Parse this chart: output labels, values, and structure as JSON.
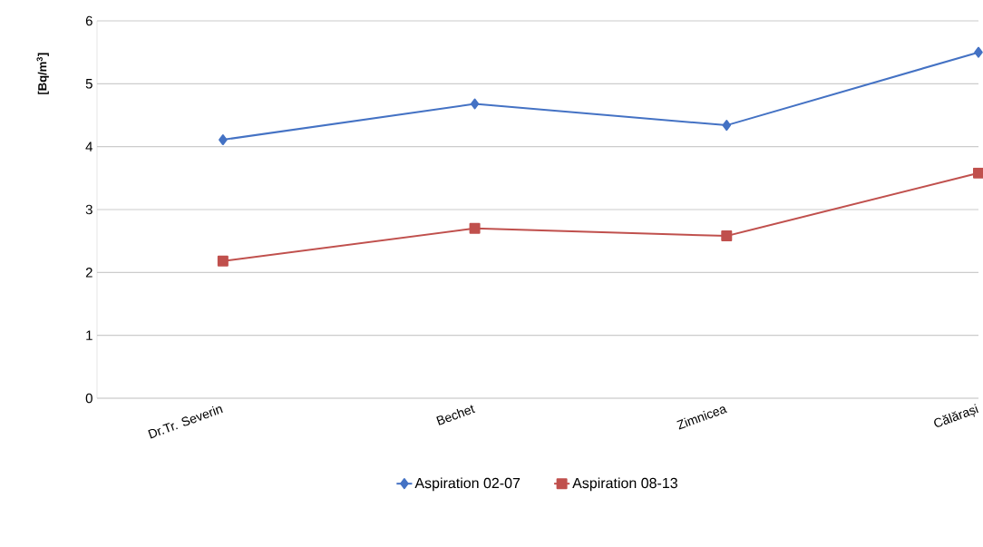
{
  "chart_data": {
    "type": "line",
    "ylabel": "[Bq/m$^{3}$]",
    "categories": [
      "Dr.Tr. Severin",
      "Bechet",
      "Zimnicea",
      "Călărași"
    ],
    "series": [
      {
        "name": "Aspiration 02-07",
        "color": "#4472c4",
        "marker": "diamond",
        "values": [
          4.11,
          4.68,
          4.34,
          5.5
        ]
      },
      {
        "name": "Aspiration 08-13",
        "color": "#c0504d",
        "marker": "square",
        "values": [
          2.18,
          2.7,
          2.58,
          3.58
        ]
      }
    ],
    "ylim": [
      0,
      6
    ],
    "yticks": [
      0,
      1,
      2,
      3,
      4,
      5,
      6
    ],
    "grid": "y",
    "legend": "bottom"
  }
}
